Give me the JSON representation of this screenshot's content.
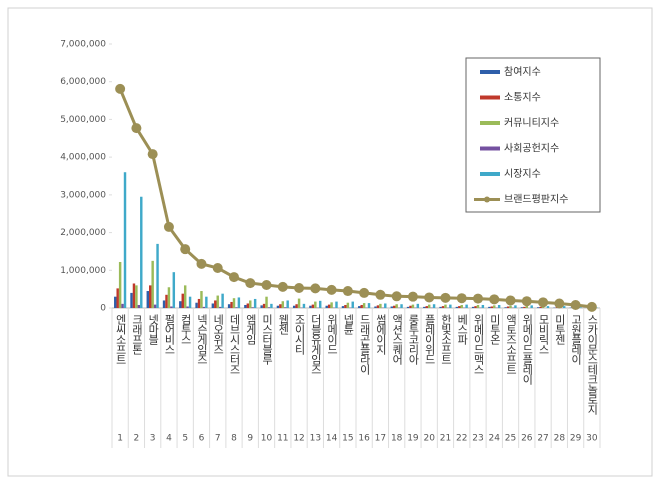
{
  "chart_data": {
    "type": "bar_line",
    "categories": [
      "엔씨소프트",
      "크래프톤",
      "넷마블",
      "펄어비스",
      "컴투스",
      "넥슨게임즈",
      "네오위즈",
      "데브시스터즈",
      "엠게임",
      "미스터블루",
      "웹젠",
      "조이시티",
      "더블유게임즈",
      "위메이드",
      "넵튠",
      "드래곤플라이",
      "썸에이지",
      "액션스퀘어",
      "룽투코리아",
      "플레이위드",
      "한빛소프트",
      "베스파",
      "위메이드맥스",
      "미투온",
      "액토즈소프트",
      "위메이드플레이",
      "모비릭스",
      "미투젠",
      "고원플레이",
      "스카이문스테크놀로지"
    ],
    "ranks": [
      1,
      2,
      3,
      4,
      5,
      6,
      7,
      8,
      9,
      10,
      11,
      12,
      13,
      14,
      15,
      16,
      17,
      18,
      19,
      20,
      21,
      22,
      23,
      24,
      25,
      26,
      27,
      28,
      29,
      30
    ],
    "series": [
      {
        "name": "참여지수",
        "color": "#2e5faa",
        "kind": "bar",
        "values": [
          300000,
          400000,
          450000,
          200000,
          180000,
          140000,
          120000,
          100000,
          80000,
          70000,
          60000,
          60000,
          60000,
          60000,
          50000,
          50000,
          40000,
          40000,
          30000,
          30000,
          30000,
          30000,
          30000,
          30000,
          20000,
          20000,
          20000,
          10000,
          10000,
          0
        ]
      },
      {
        "name": "소통지수",
        "color": "#c0392b",
        "kind": "bar",
        "values": [
          520000,
          650000,
          600000,
          350000,
          380000,
          240000,
          200000,
          160000,
          120000,
          110000,
          100000,
          100000,
          90000,
          90000,
          80000,
          80000,
          70000,
          60000,
          60000,
          50000,
          50000,
          50000,
          50000,
          40000,
          40000,
          30000,
          30000,
          20000,
          20000,
          10000
        ]
      },
      {
        "name": "커뮤니티지수",
        "color": "#9bbb59",
        "kind": "bar",
        "values": [
          1220000,
          600000,
          1250000,
          550000,
          600000,
          450000,
          330000,
          260000,
          200000,
          300000,
          180000,
          250000,
          170000,
          150000,
          140000,
          130000,
          110000,
          100000,
          90000,
          90000,
          90000,
          80000,
          80000,
          70000,
          60000,
          60000,
          50000,
          40000,
          20000,
          10000
        ]
      },
      {
        "name": "사회공헌지수",
        "color": "#7451a0",
        "kind": "bar",
        "values": [
          110000,
          80000,
          90000,
          40000,
          40000,
          30000,
          30000,
          20000,
          20000,
          20000,
          20000,
          10000,
          10000,
          10000,
          10000,
          10000,
          10000,
          10000,
          10000,
          10000,
          10000,
          10000,
          10000,
          10000,
          10000,
          0,
          0,
          0,
          0,
          0
        ]
      },
      {
        "name": "시장지수",
        "color": "#3fa9c9",
        "kind": "bar",
        "values": [
          3600000,
          2950000,
          1700000,
          950000,
          300000,
          300000,
          380000,
          280000,
          240000,
          110000,
          200000,
          110000,
          190000,
          170000,
          170000,
          130000,
          120000,
          100000,
          110000,
          100000,
          90000,
          90000,
          80000,
          80000,
          70000,
          70000,
          50000,
          50000,
          20000,
          10000
        ]
      },
      {
        "name": "브랜드평판지수",
        "color": "#9c8f55",
        "kind": "line",
        "values": [
          5810000,
          4770000,
          4080000,
          2150000,
          1560000,
          1170000,
          1060000,
          820000,
          660000,
          610000,
          560000,
          530000,
          520000,
          480000,
          450000,
          400000,
          350000,
          310000,
          300000,
          280000,
          270000,
          260000,
          250000,
          230000,
          200000,
          180000,
          150000,
          120000,
          80000,
          30000
        ]
      }
    ],
    "ylim": [
      0,
      7000000
    ],
    "yticks": [
      0,
      {
        "value": 1000000,
        "label": "1,000,000"
      },
      {
        "value": 2000000,
        "label": "2,000,000"
      },
      {
        "value": 3000000,
        "label": "3,000,000"
      },
      {
        "value": 4000000,
        "label": "4,000,000"
      },
      {
        "value": 5000000,
        "label": "5,000,000"
      },
      {
        "value": 6000000,
        "label": "6,000,000"
      },
      {
        "value": 7000000,
        "label": "7,000,000"
      }
    ],
    "grid": false,
    "legend": "upper right"
  }
}
